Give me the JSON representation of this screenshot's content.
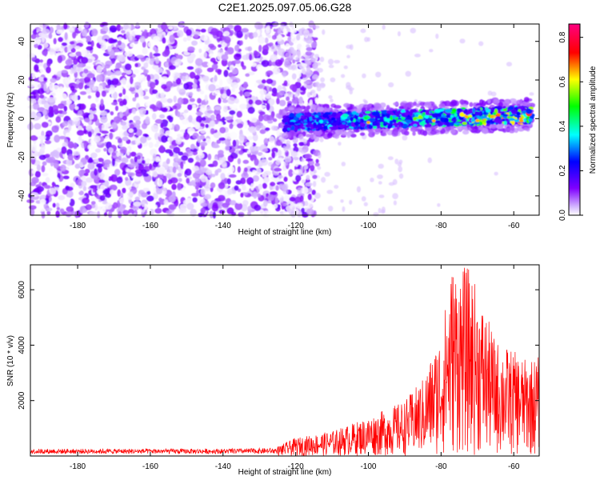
{
  "title": "C2E1.2025.097.05.06.G28",
  "chart_data": [
    {
      "type": "heatmap",
      "xlabel": "Height of straight line (km)",
      "ylabel": "Frequency (Hz)",
      "xlim": [
        -193,
        -53
      ],
      "ylim": [
        -50,
        49
      ],
      "x_ticks": [
        -180,
        -160,
        -140,
        -120,
        -100,
        -80,
        -60
      ],
      "y_ticks": [
        -40,
        -20,
        0,
        20,
        40
      ],
      "colorbar": {
        "label": "Normalized spectral amplitude",
        "range": [
          0,
          0.86
        ],
        "ticks": [
          0.0,
          0.2,
          0.4,
          0.6,
          0.8
        ],
        "colormap": [
          "#ffffff",
          "#8000ff",
          "#0000ff",
          "#00ffff",
          "#00ff00",
          "#ffff00",
          "#ff0000",
          "#ff0080"
        ]
      },
      "features": [
        {
          "name": "scattered noise",
          "x_range": [
            -193,
            -120
          ],
          "freq_range": [
            -50,
            49
          ],
          "amplitude": [
            0.0,
            0.15
          ]
        },
        {
          "name": "signal band",
          "x_range": [
            -123,
            -55
          ],
          "freq_center": [
            -2,
            2
          ],
          "freq_halfwidth": 5,
          "amplitude_max": 0.86
        }
      ],
      "grid": false
    },
    {
      "type": "line",
      "xlabel": "Height of straight line (km)",
      "ylabel": "SNR (10 * v/v)",
      "xlim": [
        -193,
        -53
      ],
      "ylim": [
        0,
        6900
      ],
      "x_ticks": [
        -180,
        -160,
        -140,
        -120,
        -100,
        -80,
        -60
      ],
      "y_ticks": [
        2000,
        4000,
        6000
      ],
      "color": "#ff0000",
      "envelope": [
        {
          "x": -193,
          "y": 300
        },
        {
          "x": -180,
          "y": 300
        },
        {
          "x": -140,
          "y": 300
        },
        {
          "x": -125,
          "y": 350
        },
        {
          "x": -120,
          "y": 650
        },
        {
          "x": -110,
          "y": 900
        },
        {
          "x": -100,
          "y": 1400
        },
        {
          "x": -90,
          "y": 2000
        },
        {
          "x": -85,
          "y": 2800
        },
        {
          "x": -80,
          "y": 4500
        },
        {
          "x": -77,
          "y": 6900
        },
        {
          "x": -72,
          "y": 6800
        },
        {
          "x": -70,
          "y": 6000
        },
        {
          "x": -65,
          "y": 4200
        },
        {
          "x": -60,
          "y": 3800
        },
        {
          "x": -57,
          "y": 3500
        },
        {
          "x": -53,
          "y": 3600
        }
      ],
      "grid": false
    }
  ]
}
